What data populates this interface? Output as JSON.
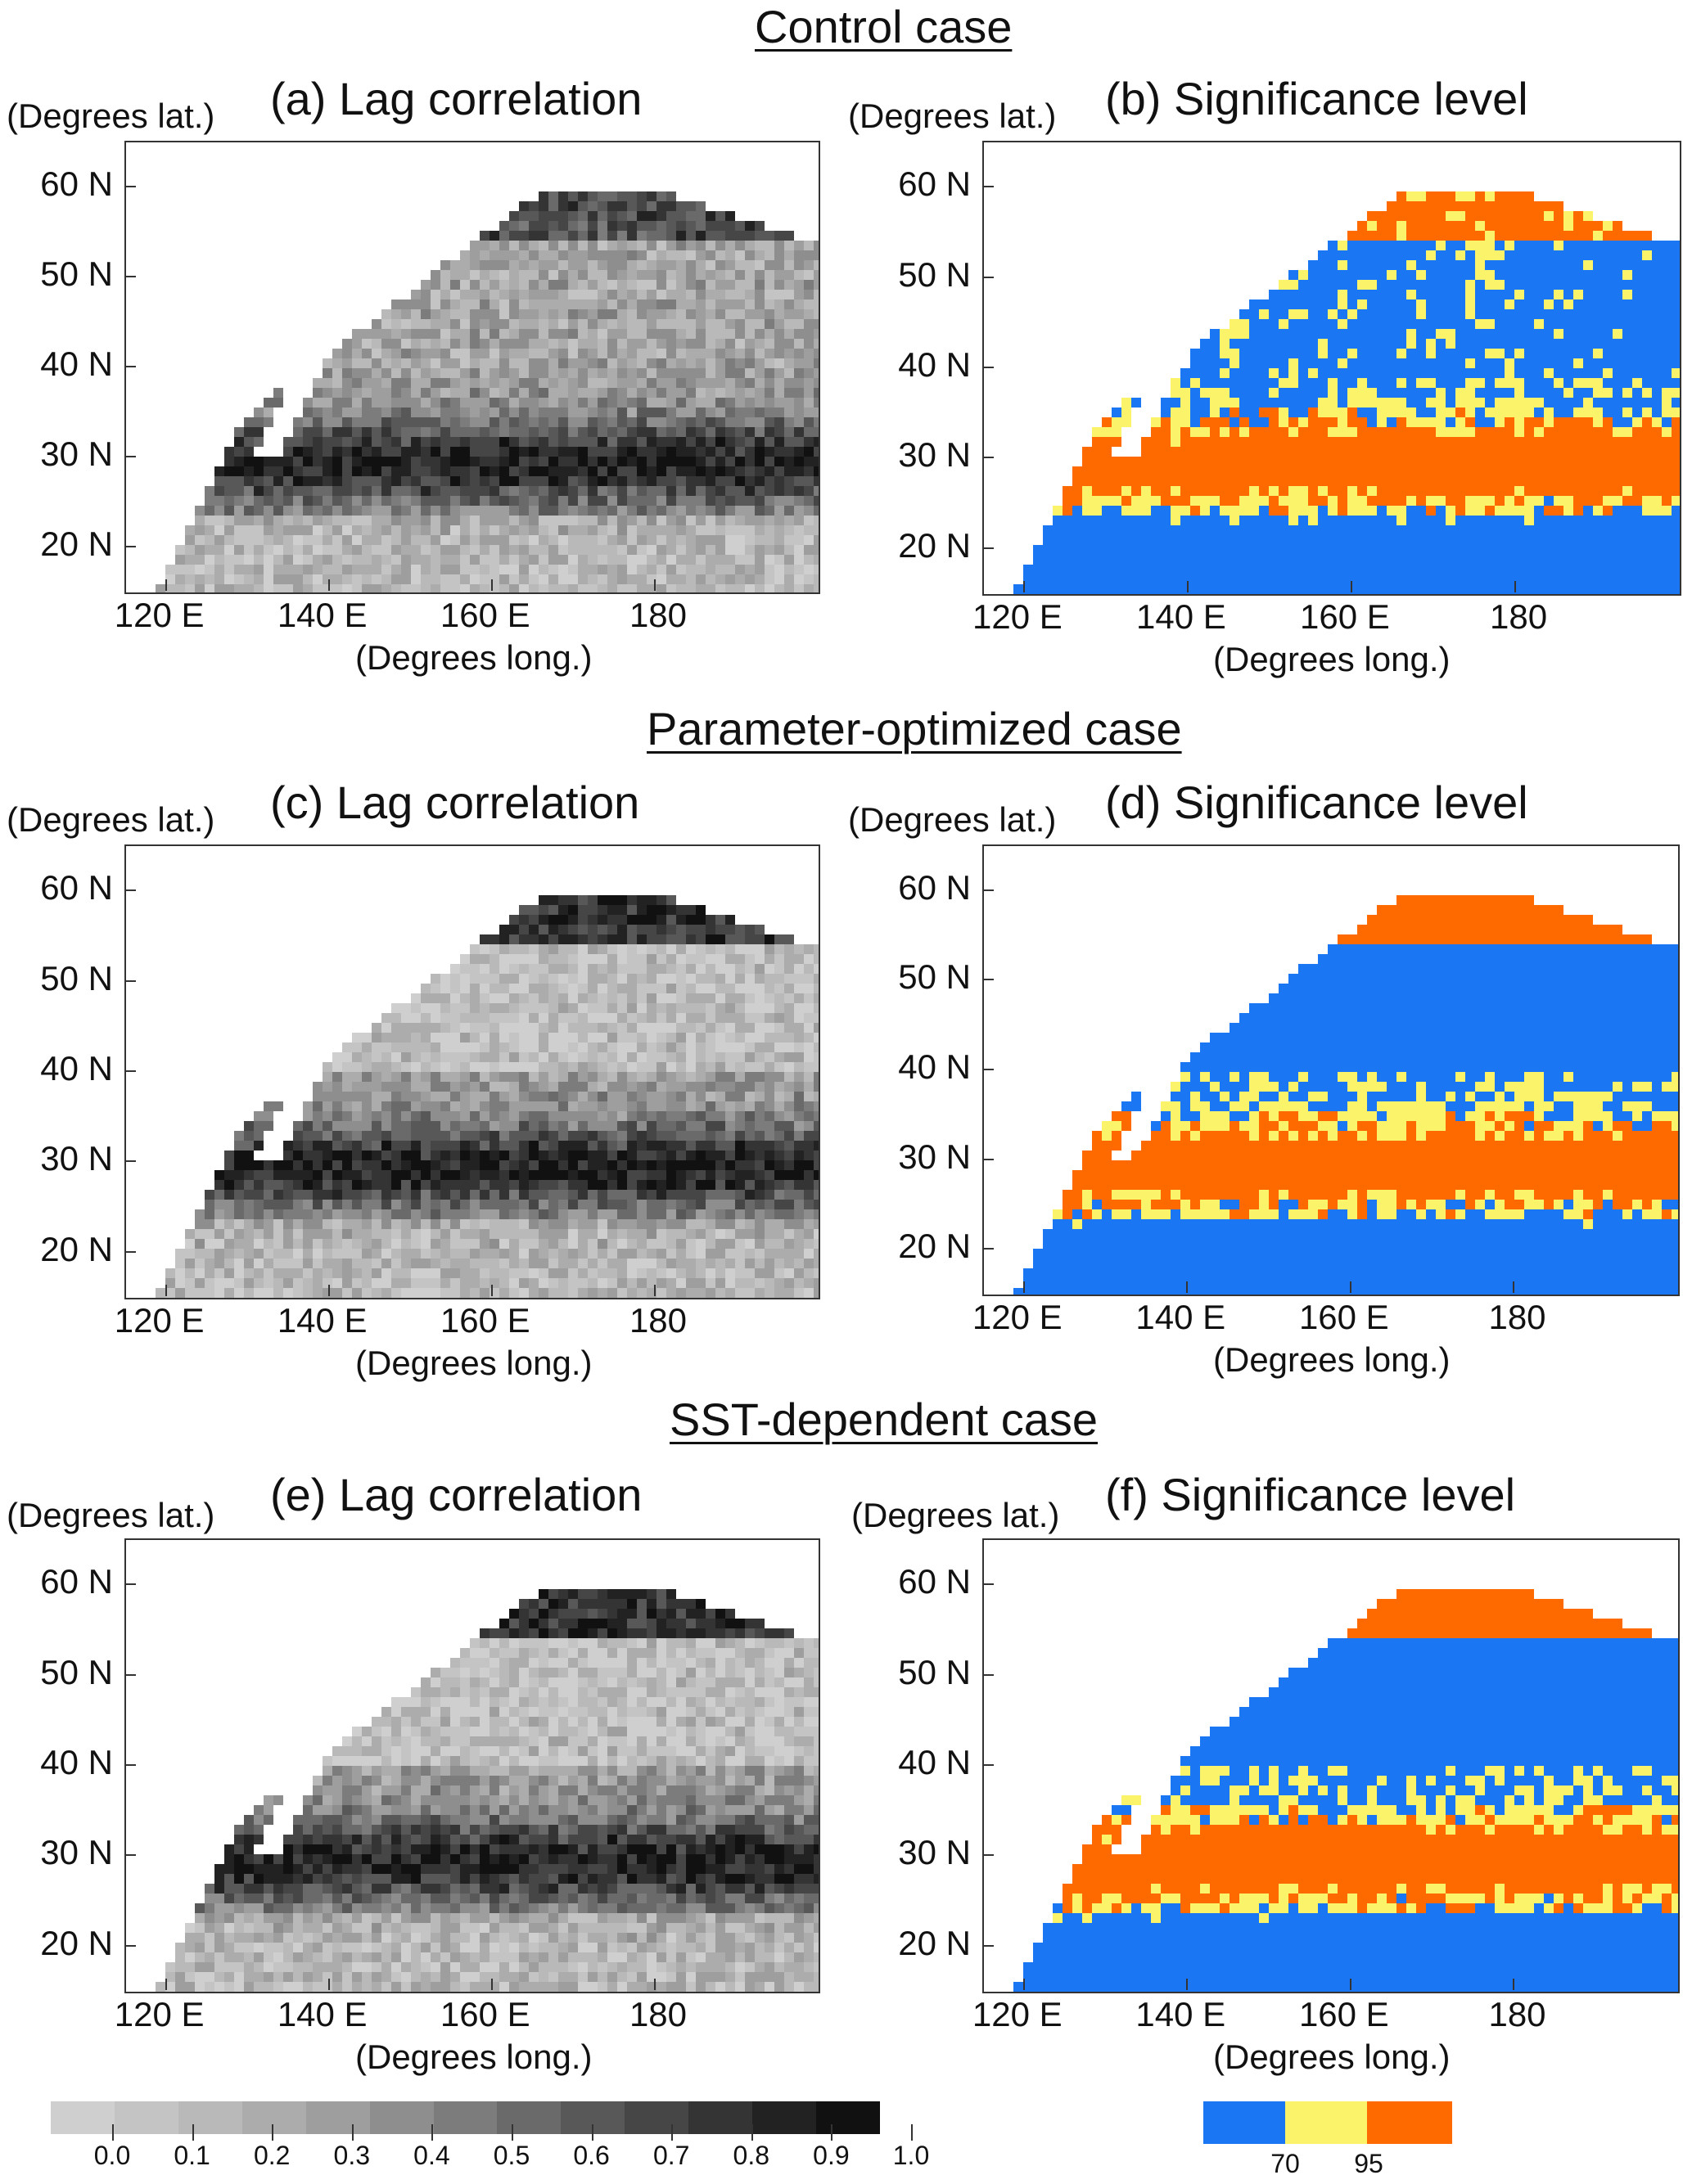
{
  "cases": [
    {
      "title": "Control case",
      "corr_panel": "(a) Lag correlation",
      "sig_panel": "(b) Significance level"
    },
    {
      "title": "Parameter-optimized case",
      "corr_panel": "(c) Lag correlation",
      "sig_panel": "(d) Significance level"
    },
    {
      "title": "SST-dependent case",
      "corr_panel": "(e) Lag correlation",
      "sig_panel": "(f) Significance level"
    }
  ],
  "axes": {
    "lat_unit": "(Degrees lat.)",
    "lon_unit": "(Degrees long.)",
    "lat_ticks": [
      "60  N",
      "50  N",
      "40  N",
      "30  N",
      "20  N"
    ],
    "lon_ticks": [
      "120 E",
      "140 E",
      "160 E",
      "180"
    ],
    "lat_range": [
      15,
      65
    ],
    "lon_range": [
      115,
      200
    ]
  },
  "correlation_colorbar": {
    "labels": [
      "0.0",
      "0.1",
      "0.2",
      "0.3",
      "0.4",
      "0.5",
      "0.6",
      "0.7",
      "0.8",
      "0.9",
      "1.0"
    ],
    "colors": [
      "#cfcfcf",
      "#c4c4c4",
      "#b9b9b9",
      "#acacac",
      "#9e9e9e",
      "#8e8e8e",
      "#7c7c7c",
      "#6a6a6a",
      "#585858",
      "#464646",
      "#343434",
      "#222222",
      "#111111"
    ]
  },
  "significance_colorbar": {
    "labels": [
      "70",
      "95"
    ],
    "colors": {
      "low": "#1a76f2",
      "mid": "#fbf36a",
      "high": "#ff6a00"
    }
  }
}
